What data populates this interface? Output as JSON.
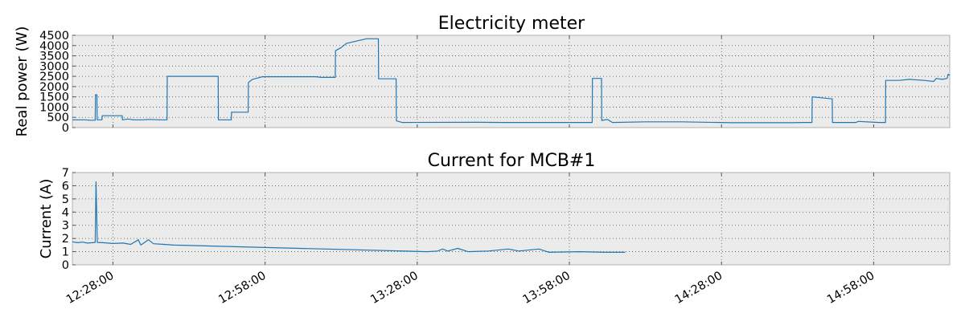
{
  "chart_data": [
    {
      "type": "line",
      "title": "Electricity meter",
      "xlabel": "",
      "ylabel": "Real power (W)",
      "ylim": [
        0,
        4500
      ],
      "yticks": [
        0,
        500,
        1000,
        1500,
        2000,
        2500,
        3000,
        3500,
        4000,
        4500
      ],
      "grid": true,
      "series": [
        {
          "color": "#1f77b4",
          "points": [
            [
              "12:20:00",
              380
            ],
            [
              "12:22:30",
              380
            ],
            [
              "12:23:30",
              360
            ],
            [
              "12:24:30",
              360
            ],
            [
              "12:24:33",
              1600
            ],
            [
              "12:24:50",
              1600
            ],
            [
              "12:24:53",
              380
            ],
            [
              "12:25:50",
              380
            ],
            [
              "12:25:53",
              580
            ],
            [
              "12:29:50",
              580
            ],
            [
              "12:29:53",
              380
            ],
            [
              "12:31:00",
              420
            ],
            [
              "12:32:00",
              380
            ],
            [
              "12:34:00",
              380
            ],
            [
              "12:35:00",
              400
            ],
            [
              "12:37:00",
              380
            ],
            [
              "12:38:40",
              380
            ],
            [
              "12:38:43",
              2500
            ],
            [
              "12:48:45",
              2500
            ],
            [
              "12:48:48",
              380
            ],
            [
              "12:51:20",
              380
            ],
            [
              "12:51:23",
              750
            ],
            [
              "12:54:40",
              750
            ],
            [
              "12:54:43",
              2200
            ],
            [
              "12:55:30",
              2350
            ],
            [
              "12:57:30",
              2480
            ],
            [
              "13:08:00",
              2480
            ],
            [
              "13:09:00",
              2450
            ],
            [
              "13:11:50",
              2450
            ],
            [
              "13:11:53",
              3750
            ],
            [
              "13:13:00",
              3900
            ],
            [
              "13:14:00",
              4100
            ],
            [
              "13:16:30",
              4250
            ],
            [
              "13:18:00",
              4330
            ],
            [
              "13:20:20",
              4330
            ],
            [
              "13:20:23",
              2380
            ],
            [
              "13:23:50",
              2380
            ],
            [
              "13:23:53",
              330
            ],
            [
              "13:25:00",
              250
            ],
            [
              "13:40:00",
              260
            ],
            [
              "13:45:00",
              250
            ],
            [
              "13:56:00",
              250
            ],
            [
              "14:00:00",
              250
            ],
            [
              "14:02:30",
              250
            ],
            [
              "14:02:33",
              2400
            ],
            [
              "14:04:20",
              2400
            ],
            [
              "14:04:23",
              350
            ],
            [
              "14:05:30",
              400
            ],
            [
              "14:06:30",
              250
            ],
            [
              "14:13:00",
              280
            ],
            [
              "14:20:00",
              280
            ],
            [
              "14:30:00",
              240
            ],
            [
              "14:42:00",
              240
            ],
            [
              "14:44:00",
              250
            ],
            [
              "14:45:50",
              250
            ],
            [
              "14:45:53",
              1500
            ],
            [
              "14:49:50",
              1400
            ],
            [
              "14:49:53",
              250
            ],
            [
              "14:54:30",
              250
            ],
            [
              "14:55:00",
              300
            ],
            [
              "14:59:00",
              250
            ],
            [
              "15:00:20",
              250
            ],
            [
              "15:00:23",
              2300
            ],
            [
              "15:03:00",
              2300
            ],
            [
              "15:05:00",
              2350
            ],
            [
              "15:08:00",
              2300
            ],
            [
              "15:09:50",
              2250
            ],
            [
              "15:10:20",
              2400
            ],
            [
              "15:11:30",
              2350
            ],
            [
              "15:12:30",
              2400
            ],
            [
              "15:12:40",
              2600
            ],
            [
              "15:13:00",
              2550
            ]
          ]
        }
      ],
      "xlim": [
        "12:20:00",
        "15:13:00"
      ],
      "xticks": [
        "12:28:00",
        "12:58:00",
        "13:28:00",
        "13:58:00",
        "14:28:00",
        "14:58:00"
      ],
      "show_xtick_labels": false
    },
    {
      "type": "line",
      "title": "Current for MCB#1",
      "xlabel": "",
      "ylabel": "Current (A)",
      "ylim": [
        0,
        7
      ],
      "yticks": [
        0,
        1,
        2,
        3,
        4,
        5,
        6,
        7
      ],
      "grid": true,
      "series": [
        {
          "color": "#1f77b4",
          "points": [
            [
              "12:20:00",
              1.75
            ],
            [
              "12:21:00",
              1.68
            ],
            [
              "12:22:00",
              1.72
            ],
            [
              "12:23:00",
              1.65
            ],
            [
              "12:24:30",
              1.7
            ],
            [
              "12:24:40",
              6.3
            ],
            [
              "12:24:55",
              1.7
            ],
            [
              "12:26:00",
              1.68
            ],
            [
              "12:28:00",
              1.62
            ],
            [
              "12:30:00",
              1.65
            ],
            [
              "12:31:30",
              1.55
            ],
            [
              "12:33:00",
              1.9
            ],
            [
              "12:33:30",
              1.5
            ],
            [
              "12:35:00",
              1.9
            ],
            [
              "12:36:00",
              1.6
            ],
            [
              "12:38:00",
              1.55
            ],
            [
              "12:40:00",
              1.5
            ],
            [
              "13:30:00",
              1.0
            ],
            [
              "13:32:00",
              1.05
            ],
            [
              "13:33:00",
              1.2
            ],
            [
              "13:34:00",
              1.05
            ],
            [
              "13:36:00",
              1.25
            ],
            [
              "13:38:00",
              1.0
            ],
            [
              "13:42:00",
              1.05
            ],
            [
              "13:46:00",
              1.2
            ],
            [
              "13:48:00",
              1.05
            ],
            [
              "13:52:00",
              1.2
            ],
            [
              "13:54:00",
              0.95
            ],
            [
              "14:00:00",
              1.0
            ],
            [
              "14:05:00",
              0.95
            ],
            [
              "14:09:00",
              0.95
            ]
          ]
        }
      ],
      "xlim": [
        "12:20:00",
        "15:13:00"
      ],
      "xticks": [
        "12:28:00",
        "12:58:00",
        "13:28:00",
        "13:58:00",
        "14:28:00",
        "14:58:00"
      ],
      "show_xtick_labels": true
    }
  ]
}
